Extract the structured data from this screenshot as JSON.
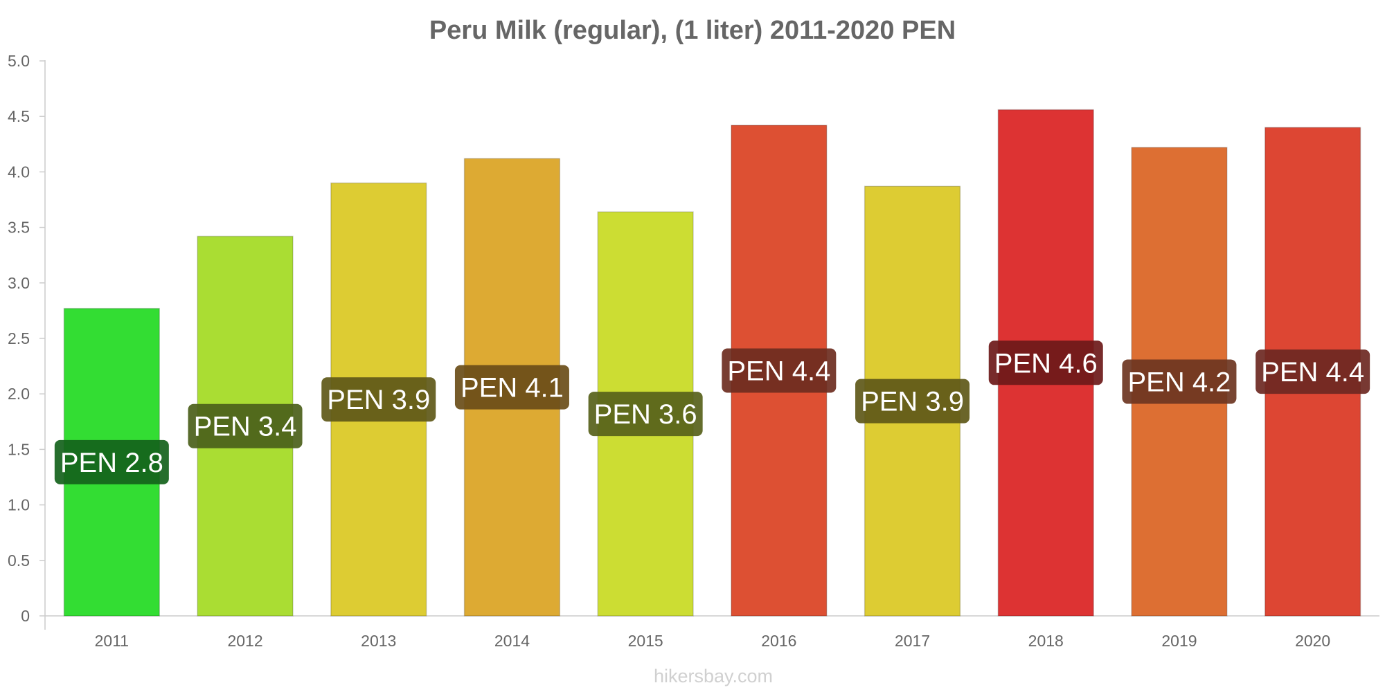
{
  "chart_data": {
    "type": "bar",
    "title": "Peru Milk (regular), (1 liter) 2011-2020 PEN",
    "xlabel": "",
    "ylabel": "",
    "ylim": [
      0,
      5.0
    ],
    "yticks": [
      0,
      0.5,
      1.0,
      1.5,
      2.0,
      2.5,
      3.0,
      3.5,
      4.0,
      4.5,
      5.0
    ],
    "ytick_labels": [
      "0",
      "0.5",
      "1.0",
      "1.5",
      "2.0",
      "2.5",
      "3.0",
      "3.5",
      "4.0",
      "4.5",
      "5.0"
    ],
    "categories": [
      "2011",
      "2012",
      "2013",
      "2014",
      "2015",
      "2016",
      "2017",
      "2018",
      "2019",
      "2020"
    ],
    "values": [
      2.77,
      3.42,
      3.9,
      4.12,
      3.64,
      4.42,
      3.87,
      4.56,
      4.22,
      4.4
    ],
    "value_labels": [
      "PEN 2.8",
      "PEN 3.4",
      "PEN 3.9",
      "PEN 4.1",
      "PEN 3.6",
      "PEN 4.4",
      "PEN 3.9",
      "PEN 4.6",
      "PEN 4.2",
      "PEN 4.4"
    ],
    "colors": [
      "#33dd33",
      "#aadd33",
      "#ddcc33",
      "#ddaa33",
      "#ccdd33",
      "#dd5033",
      "#ddcc33",
      "#dd3333",
      "#dd6f33",
      "#dd4633"
    ],
    "label_colors": [
      "#13621b",
      "#4b601a",
      "#5e5818",
      "#6a4d18",
      "#57611a",
      "#6d2d1f",
      "#5e5818",
      "#6c1919",
      "#6c3521",
      "#6c2822"
    ],
    "grid": false,
    "legend": "none"
  },
  "watermark": "hikersbay.com"
}
